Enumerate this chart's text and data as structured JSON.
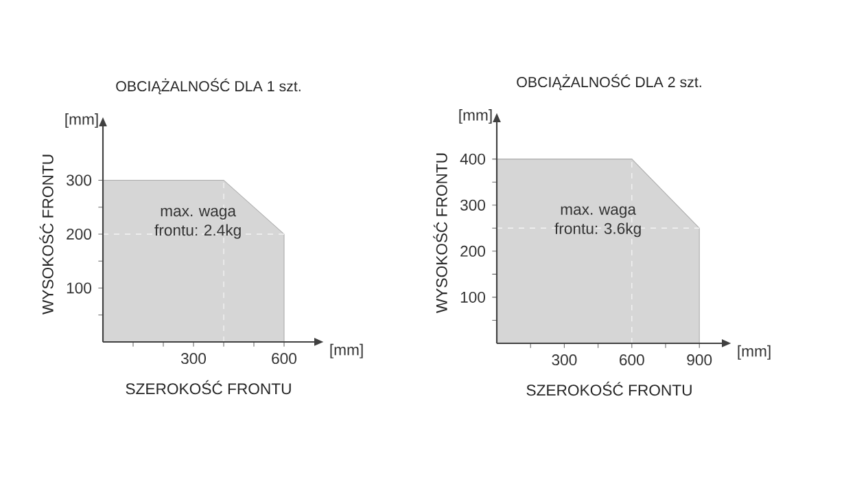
{
  "chart_data": [
    {
      "type": "area",
      "title": "OBCIĄŻALNOŚĆ DLA 1 szt.",
      "xlabel": "SZEROKOŚĆ FRONTU",
      "ylabel": "WYSOKOŚĆ FRONTU",
      "annotations": [
        "[mm]",
        "[mm]",
        "max. waga frontu: 2.4kg"
      ],
      "x": [
        0,
        400,
        600
      ],
      "values": [
        300,
        300,
        200
      ],
      "color": "#d6d6d6",
      "xlim": [
        0,
        700
      ],
      "ylim": [
        0,
        400
      ],
      "xticks": [
        {
          "value": 100,
          "label": null
        },
        {
          "value": 200,
          "label": null
        },
        300,
        {
          "value": 400,
          "label": null
        },
        {
          "value": 500,
          "label": null
        },
        600
      ],
      "yticks": [
        {
          "value": 50,
          "label": null
        },
        100,
        {
          "value": 150,
          "label": null
        },
        200,
        {
          "value": 250,
          "label": null
        },
        300
      ],
      "ref_lines": [
        {
          "axis": "x",
          "value": 400,
          "color": "#f4f4f4",
          "line_style": "dashed"
        },
        {
          "axis": "y",
          "value": 200,
          "color": "#f4f4f4",
          "line_style": "dashed"
        }
      ]
    },
    {
      "type": "area",
      "title": "OBCIĄŻALNOŚĆ DLA 2 szt.",
      "xlabel": "SZEROKOŚĆ FRONTU",
      "ylabel": "WYSOKOŚĆ FRONTU",
      "annotations": [
        "[mm]",
        "[mm]",
        "max. waga frontu: 3.6kg"
      ],
      "x": [
        0,
        600,
        900
      ],
      "values": [
        400,
        400,
        250
      ],
      "color": "#d6d6d6",
      "xlim": [
        0,
        1000
      ],
      "ylim": [
        0,
        480
      ],
      "xticks": [
        {
          "value": 150,
          "label": null
        },
        300,
        {
          "value": 450,
          "label": null
        },
        600,
        {
          "value": 750,
          "label": null
        },
        900
      ],
      "yticks": [
        {
          "value": 50,
          "label": null
        },
        100,
        {
          "value": 150,
          "label": null
        },
        200,
        {
          "value": 250,
          "label": null
        },
        300,
        {
          "value": 350,
          "label": null
        },
        400
      ],
      "ref_lines": [
        {
          "axis": "x",
          "value": 600,
          "color": "#f4f4f4",
          "line_style": "dashed"
        },
        {
          "axis": "y",
          "value": 250,
          "color": "#f4f4f4",
          "line_style": "dashed"
        }
      ]
    }
  ]
}
